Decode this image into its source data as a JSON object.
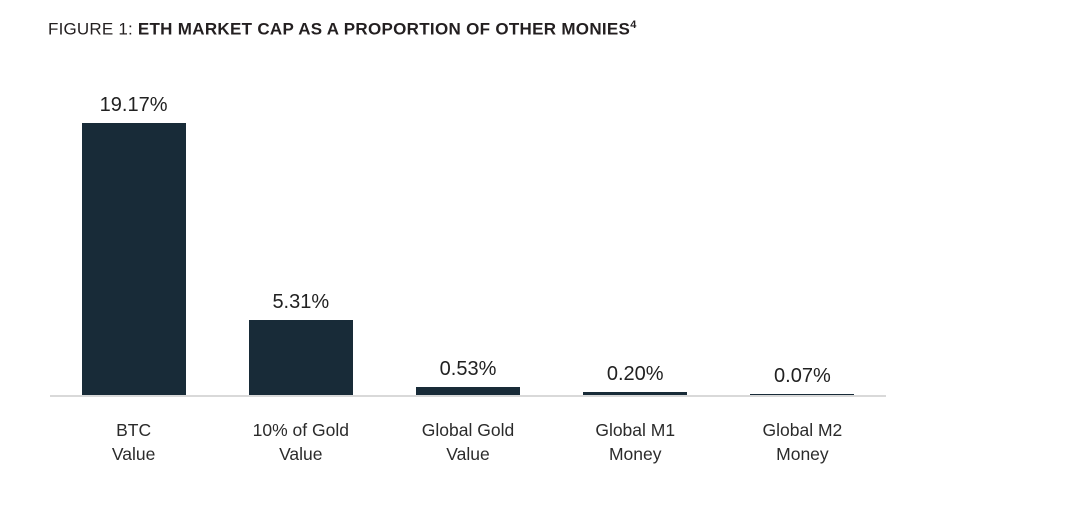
{
  "title": {
    "prefix": "FIGURE 1: ",
    "main": "ETH MARKET CAP AS A PROPORTION OF OTHER MONIES",
    "footnote": "4"
  },
  "chart_data": {
    "type": "bar",
    "title": "ETH Market Cap as a Proportion of Other Monies",
    "categories": [
      [
        "BTC",
        "Value"
      ],
      [
        "10% of Gold",
        "Value"
      ],
      [
        "Global Gold",
        "Value"
      ],
      [
        "Global M1",
        "Money"
      ],
      [
        "Global M2",
        "Money"
      ]
    ],
    "values": [
      19.17,
      5.31,
      0.53,
      0.2,
      0.07
    ],
    "value_labels": [
      "19.17%",
      "5.31%",
      "0.53%",
      "0.20%",
      "0.07%"
    ],
    "unit": "%",
    "xlabel": "",
    "ylabel": "",
    "ylim": [
      0,
      24
    ],
    "grid": false,
    "legend": "none",
    "bar_color": "#182b38",
    "axis_color": "#d9d9d9"
  }
}
